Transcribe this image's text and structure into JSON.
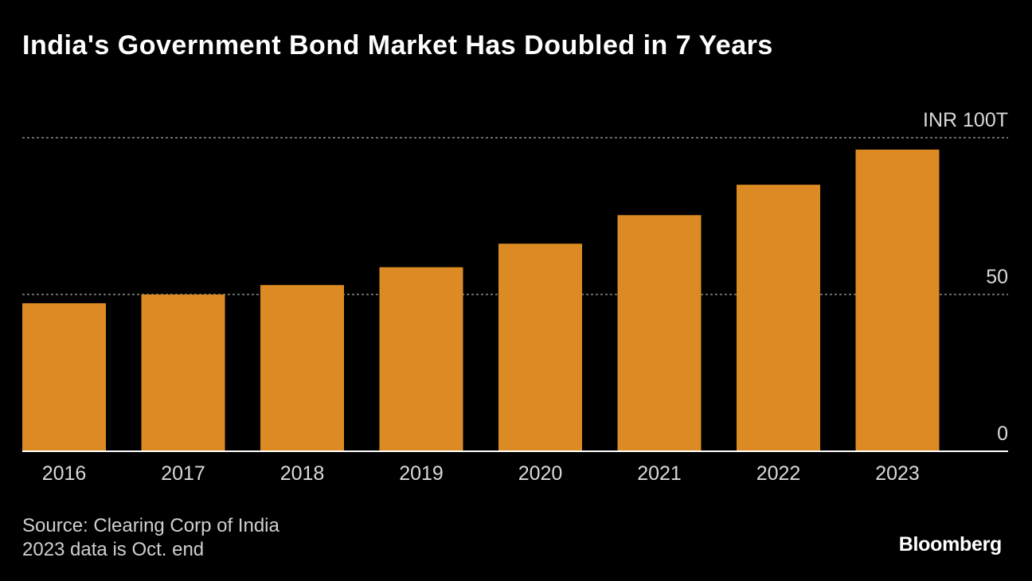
{
  "title": "India's Government Bond Market Has Doubled in 7 Years",
  "chart_data": {
    "type": "bar",
    "categories": [
      "2016",
      "2017",
      "2018",
      "2019",
      "2020",
      "2021",
      "2022",
      "2023"
    ],
    "values": [
      47.2,
      50.0,
      53.0,
      58.7,
      66.2,
      75.3,
      85.0,
      96.2
    ],
    "ylim": [
      0,
      100
    ],
    "yticks": [
      0,
      50,
      100
    ],
    "ytick_labels": [
      "0",
      "50",
      "INR 100T"
    ],
    "bar_color": "#dc8b24",
    "grid_color": "#8a8a8a",
    "axis_color": "#ffffff",
    "tick_text_color": "#d9d9d9",
    "xlabel": "",
    "ylabel": ""
  },
  "footer": {
    "source": "Source: Clearing Corp of India",
    "note": "2023 data is Oct. end"
  },
  "brand": "Bloomberg"
}
